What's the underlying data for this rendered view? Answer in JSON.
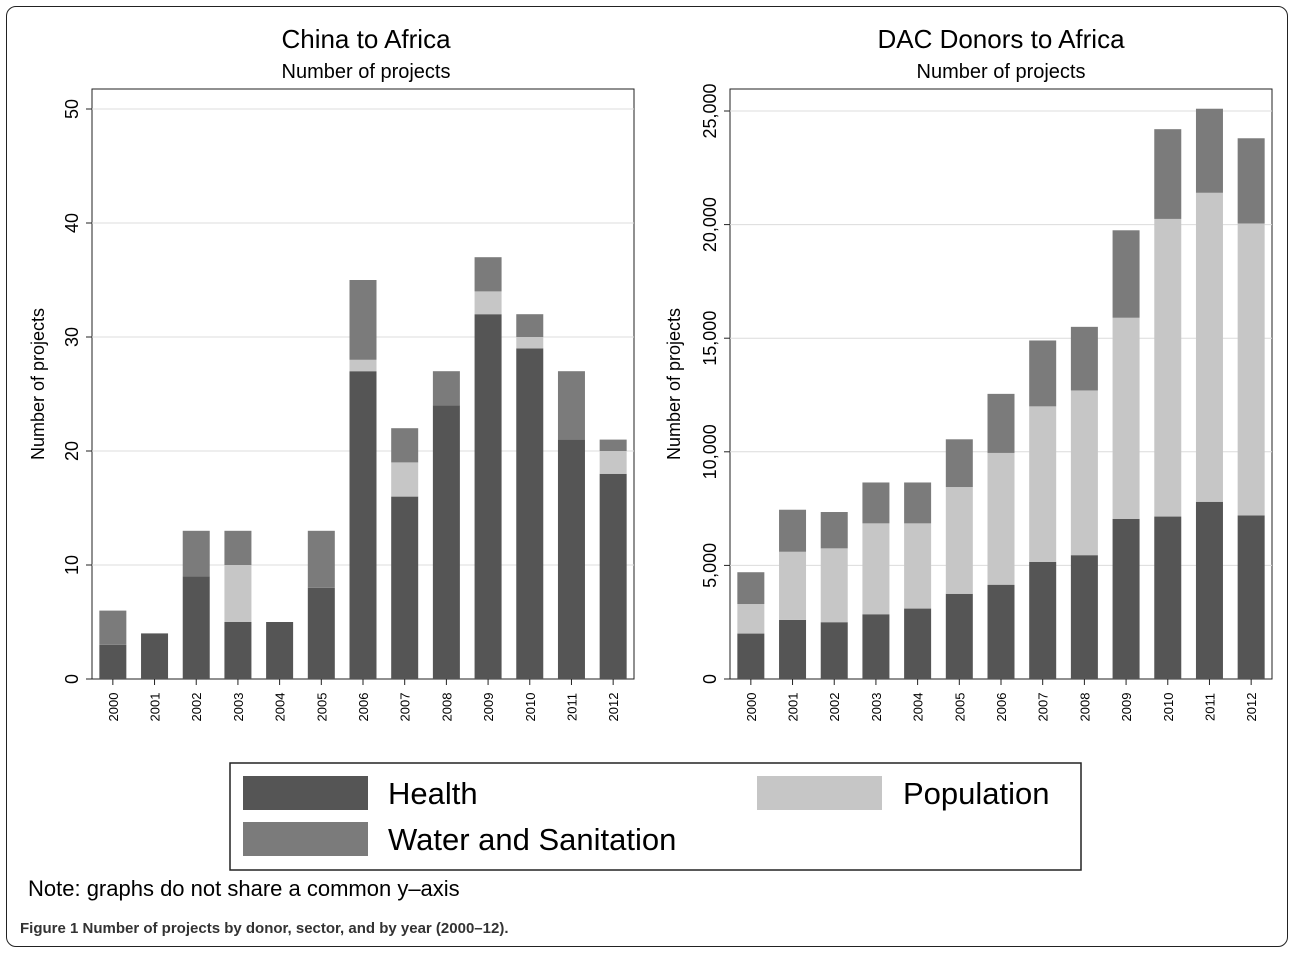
{
  "figure": {
    "note": "Note: graphs do not share a common y–axis",
    "caption": "Figure 1 Number of projects by donor, sector, and by year (2000–12)."
  },
  "legend": {
    "items": [
      {
        "name": "Health",
        "color": "#555555"
      },
      {
        "name": "Population",
        "color": "#c6c6c6"
      },
      {
        "name": "Water and Sanitation",
        "color": "#7b7b7b"
      }
    ]
  },
  "chart_data": [
    {
      "type": "bar",
      "stacked": true,
      "title": "China to Africa",
      "subtitle": "Number of projects",
      "ylabel": "Number of projects",
      "xlabel": "",
      "ylim": [
        0,
        50
      ],
      "yticks": [
        0,
        10,
        20,
        30,
        40,
        50
      ],
      "ytick_labels": [
        "0",
        "10",
        "20",
        "30",
        "40",
        "50"
      ],
      "grid": true,
      "legend": "bottom",
      "categories": [
        "2000",
        "2001",
        "2002",
        "2003",
        "2004",
        "2005",
        "2006",
        "2007",
        "2008",
        "2009",
        "2010",
        "2011",
        "2012"
      ],
      "series": [
        {
          "name": "Health",
          "color": "#555555",
          "values": [
            3,
            4,
            9,
            5,
            5,
            8,
            27,
            16,
            24,
            32,
            29,
            21,
            18
          ]
        },
        {
          "name": "Population",
          "color": "#c6c6c6",
          "values": [
            0,
            0,
            0,
            5,
            0,
            0,
            1,
            3,
            0,
            2,
            1,
            0,
            2
          ]
        },
        {
          "name": "Water and Sanitation",
          "color": "#7b7b7b",
          "values": [
            3,
            0,
            4,
            3,
            0,
            5,
            7,
            3,
            3,
            3,
            2,
            6,
            1
          ]
        }
      ]
    },
    {
      "type": "bar",
      "stacked": true,
      "title": "DAC Donors to Africa",
      "subtitle": "Number of projects",
      "ylabel": "Number of projects",
      "xlabel": "",
      "ylim": [
        0,
        26000
      ],
      "yticks": [
        0,
        5000,
        10000,
        15000,
        20000,
        25000
      ],
      "ytick_labels": [
        "0",
        "5,000",
        "10,000",
        "15,000",
        "20,000",
        "25,000"
      ],
      "grid": true,
      "legend": "bottom",
      "categories": [
        "2000",
        "2001",
        "2002",
        "2003",
        "2004",
        "2005",
        "2006",
        "2007",
        "2008",
        "2009",
        "2010",
        "2011",
        "2012"
      ],
      "series": [
        {
          "name": "Health",
          "color": "#555555",
          "values": [
            2000,
            2600,
            2500,
            2850,
            3100,
            3750,
            4150,
            5150,
            5450,
            7050,
            7150,
            7800,
            7200
          ]
        },
        {
          "name": "Population",
          "color": "#c6c6c6",
          "values": [
            1300,
            3000,
            3250,
            4000,
            3750,
            4700,
            5800,
            6850,
            7250,
            8850,
            13100,
            13600,
            12850
          ]
        },
        {
          "name": "Water and Sanitation",
          "color": "#7b7b7b",
          "values": [
            1400,
            1850,
            1600,
            1800,
            1800,
            2100,
            2600,
            2900,
            2800,
            3850,
            3950,
            3700,
            3750
          ]
        }
      ]
    }
  ]
}
